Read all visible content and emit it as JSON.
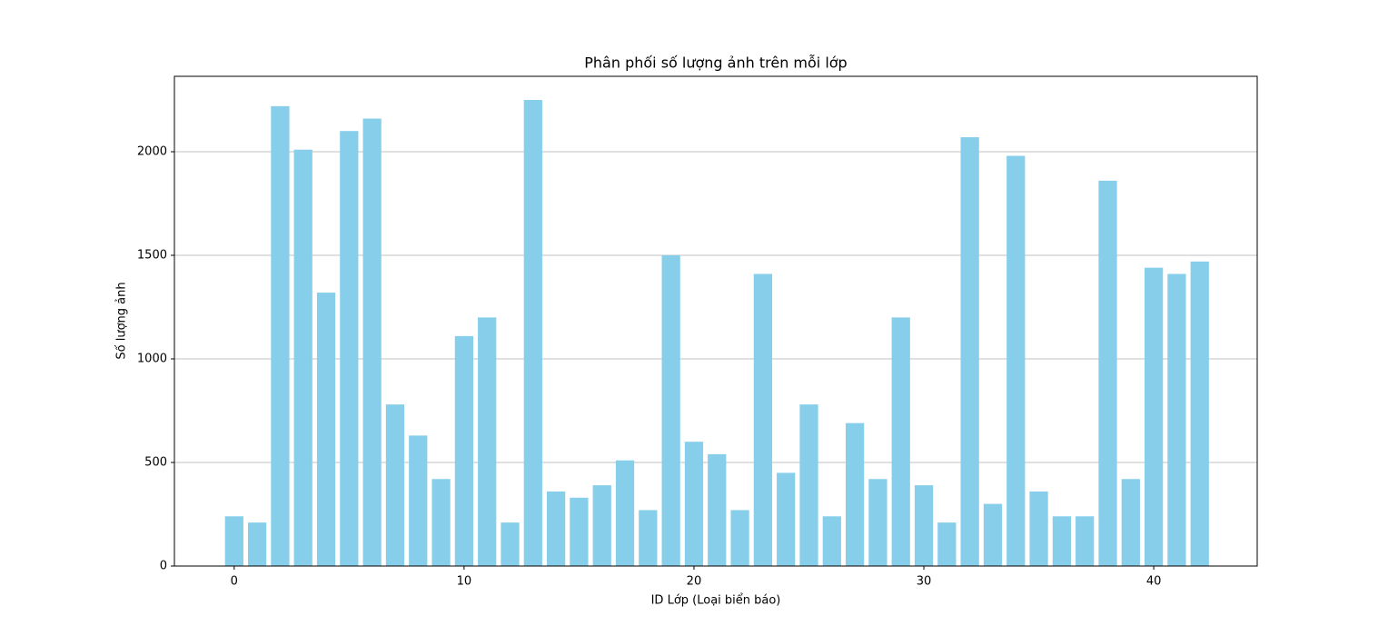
{
  "chart_data": {
    "type": "bar",
    "title": "Phân phối số lượng ảnh trên mỗi lớp",
    "xlabel": "ID Lớp (Loại biển báo)",
    "ylabel": "Số lượng ảnh",
    "x": [
      0,
      1,
      2,
      3,
      4,
      5,
      6,
      7,
      8,
      9,
      10,
      11,
      12,
      13,
      14,
      15,
      16,
      17,
      18,
      19,
      20,
      21,
      22,
      23,
      24,
      25,
      26,
      27,
      28,
      29,
      30,
      31,
      32,
      33,
      34,
      35,
      36,
      37,
      38,
      39,
      40,
      41,
      42
    ],
    "values": [
      240,
      210,
      2220,
      2010,
      1320,
      2100,
      2160,
      780,
      630,
      420,
      1110,
      1200,
      210,
      2250,
      360,
      330,
      390,
      510,
      270,
      1500,
      600,
      540,
      270,
      1410,
      450,
      780,
      240,
      690,
      420,
      1200,
      390,
      210,
      2070,
      300,
      1980,
      360,
      240,
      240,
      1860,
      420,
      1440,
      1410,
      1470
    ],
    "color": "#87ceeb",
    "bar_width": 0.8,
    "xlim": [
      -2.6,
      44.5
    ],
    "xticks": [
      0,
      10,
      20,
      30,
      40
    ],
    "ylim": [
      0,
      2364
    ],
    "yticks": [
      0,
      500,
      1000,
      1500,
      2000
    ],
    "grid": "y"
  }
}
